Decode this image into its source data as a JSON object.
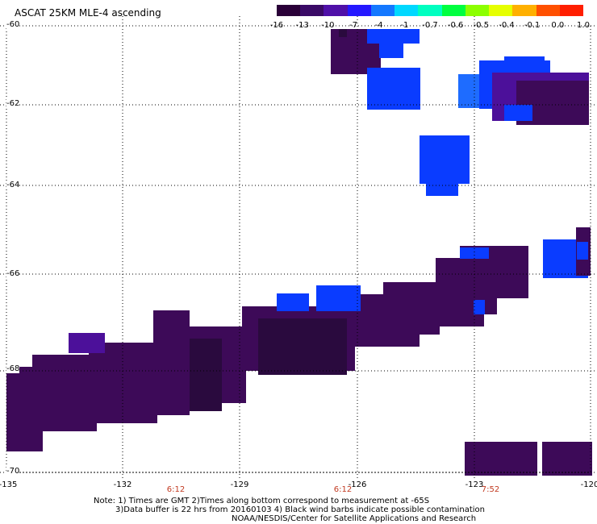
{
  "title": "ASCAT 25KM MLE-4 ascending",
  "colorbar": {
    "colors": [
      "#2a0038",
      "#3a0a66",
      "#4f10a8",
      "#2418ff",
      "#1478ff",
      "#00d8ff",
      "#00ffc0",
      "#00ff40",
      "#8cff00",
      "#e6ff00",
      "#ffb000",
      "#ff5000",
      "#ff1e00"
    ],
    "labels": [
      "-16",
      "-13",
      "-10",
      "-7",
      "-4",
      "-1",
      "-0.7",
      "-0.6",
      "-0.5",
      "-0.4",
      "-0.1",
      "0.0",
      "1.0"
    ]
  },
  "axes": {
    "lat_labels": [
      "-60",
      "-62",
      "-64",
      "-66",
      "-68",
      "-70"
    ],
    "lon_labels": [
      "-135",
      "-132",
      "-129",
      "-126",
      "-123",
      "-120"
    ]
  },
  "time_labels": [
    "6:12",
    "6:12",
    "7:52"
  ],
  "notes": {
    "line1": "Note: 1) Times are GMT 2)Times along bottom correspond to measurement at -65S",
    "line2": "3)Data buffer is 22 hrs from 20160103 4) Black wind barbs indicate possible contamination",
    "line3": "NOAA/NESDIS/Center for Satellite Applications and Research"
  },
  "palette": {
    "deep": "#3d0a58",
    "dark": "#2a0a3e",
    "violet": "#4c109a",
    "blue": "#0a3cff",
    "lightblue": "#1e6cff"
  }
}
